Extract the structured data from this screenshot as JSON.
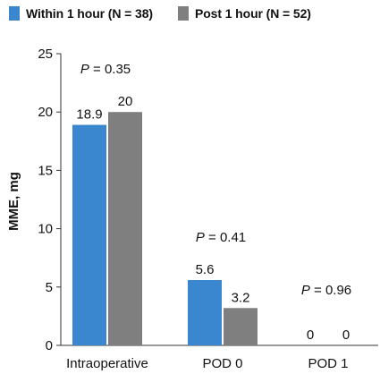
{
  "chart_data": {
    "type": "bar",
    "ylabel": "MME, mg",
    "ylim": [
      0,
      25
    ],
    "yticks": [
      0,
      5,
      10,
      15,
      20,
      25
    ],
    "categories": [
      "Intraoperative",
      "POD 0",
      "POD 1"
    ],
    "series": [
      {
        "name": "Within 1 hour (N = 38)",
        "color": "#3a86cf",
        "values": [
          18.9,
          5.6,
          0
        ],
        "labels": [
          "18.9",
          "5.6",
          "0"
        ]
      },
      {
        "name": "Post 1 hour (N = 52)",
        "color": "#7f7f80",
        "values": [
          20,
          3.2,
          0
        ],
        "labels": [
          "20",
          "3.2",
          "0"
        ]
      }
    ],
    "p_values": [
      {
        "prefix": "P",
        "text": " = 0.35"
      },
      {
        "prefix": "P",
        "text": " = 0.41"
      },
      {
        "prefix": "P",
        "text": " = 0.96"
      }
    ],
    "grid": false,
    "legend_position": "top-left"
  }
}
